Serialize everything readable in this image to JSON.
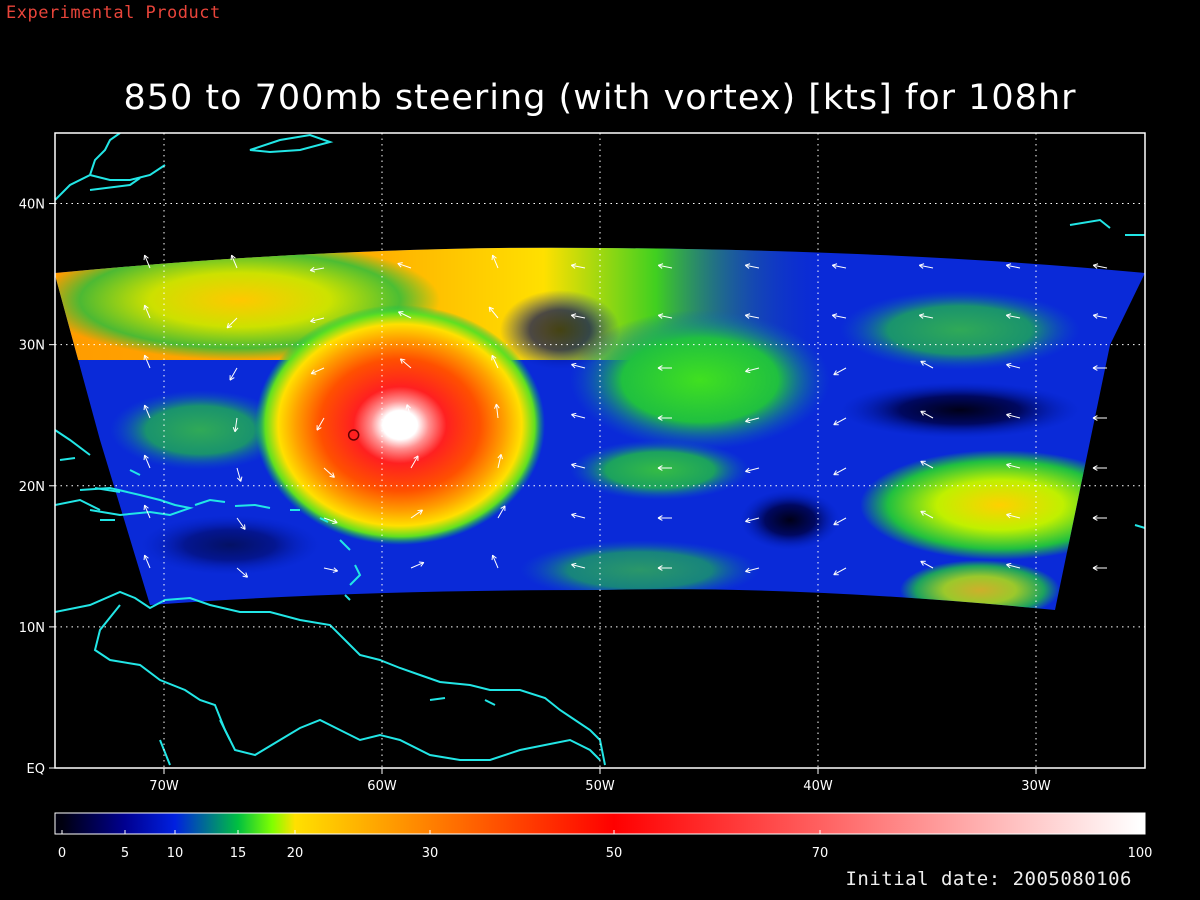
{
  "header": {
    "experimental_label": "Experimental Product",
    "title": "850 to 700mb steering (with vortex) [kts] for 108hr"
  },
  "footer": {
    "initial_date_text": "Initial date: 2005080106"
  },
  "map": {
    "lat_range": [
      0,
      45
    ],
    "lon_range": [
      -75,
      -25
    ],
    "lat_ticks": [
      {
        "value": 0,
        "label": "EQ"
      },
      {
        "value": 10,
        "label": "10N"
      },
      {
        "value": 20,
        "label": "20N"
      },
      {
        "value": 30,
        "label": "30N"
      },
      {
        "value": 40,
        "label": "40N"
      }
    ],
    "lon_ticks": [
      {
        "value": -70,
        "label": "70W"
      },
      {
        "value": -60,
        "label": "60W"
      },
      {
        "value": -50,
        "label": "50W"
      },
      {
        "value": -40,
        "label": "40W"
      },
      {
        "value": -30,
        "label": "30W"
      }
    ],
    "grid": "dotted",
    "coastline_color": "#22e6e6",
    "vortex_center": {
      "lon": -61.3,
      "lat": 23.6
    }
  },
  "colorbar": {
    "range": [
      0,
      100
    ],
    "ticks": [
      {
        "value": 0,
        "label": "0"
      },
      {
        "value": 5,
        "label": "5"
      },
      {
        "value": 10,
        "label": "10"
      },
      {
        "value": 15,
        "label": "15"
      },
      {
        "value": 20,
        "label": "20"
      },
      {
        "value": 30,
        "label": "30"
      },
      {
        "value": 50,
        "label": "50"
      },
      {
        "value": 70,
        "label": "70"
      },
      {
        "value": 100,
        "label": "100"
      }
    ]
  }
}
